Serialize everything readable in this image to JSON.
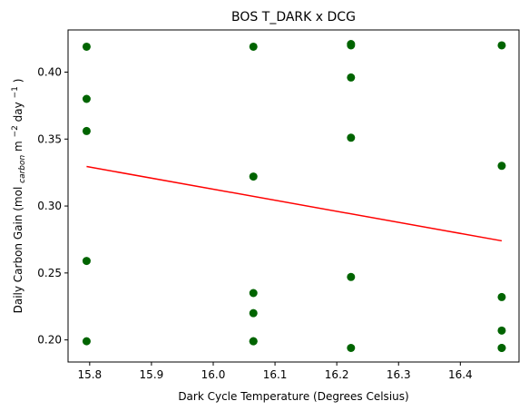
{
  "chart_data": {
    "type": "scatter",
    "title": "BOS T_DARK x DCG",
    "xlabel": "Dark Cycle Temperature (Degrees Celsius)",
    "ylabel": {
      "prefix": "Daily Carbon Gain (mol",
      "carbon_subscript": "carbon",
      "middle": " m",
      "m_exponent": "−2",
      "day_text": " day",
      "day_exponent": "−1",
      "suffix": ")"
    },
    "xlim": [
      15.765,
      16.495
    ],
    "ylim": [
      0.1835,
      0.4315
    ],
    "xticks": [
      15.8,
      15.9,
      16.0,
      16.1,
      16.2,
      16.3,
      16.4
    ],
    "xtick_labels": [
      "15.8",
      "15.9",
      "16.0",
      "16.1",
      "16.2",
      "16.3",
      "16.4"
    ],
    "yticks": [
      0.2,
      0.25,
      0.3,
      0.35,
      0.4
    ],
    "ytick_labels": [
      "0.20",
      "0.25",
      "0.30",
      "0.35",
      "0.40"
    ],
    "points": [
      {
        "x": 15.795,
        "y": 0.419
      },
      {
        "x": 15.795,
        "y": 0.38
      },
      {
        "x": 15.795,
        "y": 0.356
      },
      {
        "x": 15.795,
        "y": 0.259
      },
      {
        "x": 15.795,
        "y": 0.199
      },
      {
        "x": 16.065,
        "y": 0.419
      },
      {
        "x": 16.065,
        "y": 0.322
      },
      {
        "x": 16.065,
        "y": 0.235
      },
      {
        "x": 16.065,
        "y": 0.22
      },
      {
        "x": 16.065,
        "y": 0.199
      },
      {
        "x": 16.065,
        "y": 0.199
      },
      {
        "x": 16.223,
        "y": 0.42
      },
      {
        "x": 16.223,
        "y": 0.421
      },
      {
        "x": 16.223,
        "y": 0.396
      },
      {
        "x": 16.223,
        "y": 0.351
      },
      {
        "x": 16.223,
        "y": 0.247
      },
      {
        "x": 16.223,
        "y": 0.194
      },
      {
        "x": 16.467,
        "y": 0.42
      },
      {
        "x": 16.467,
        "y": 0.33
      },
      {
        "x": 16.467,
        "y": 0.232
      },
      {
        "x": 16.467,
        "y": 0.207
      },
      {
        "x": 16.467,
        "y": 0.194
      },
      {
        "x": 16.467,
        "y": 0.194
      }
    ],
    "trendline": {
      "x": [
        15.795,
        16.467
      ],
      "y": [
        0.3295,
        0.274
      ]
    },
    "point_color": "#006400",
    "line_color": "#ff0000",
    "grid": false,
    "legend": "none"
  }
}
